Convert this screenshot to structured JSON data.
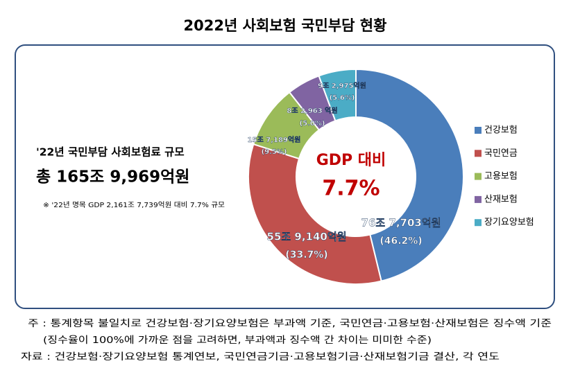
{
  "chart_data": {
    "type": "pie",
    "title": "2022년 사회보험 국민부담 현황",
    "categories": [
      "건강보험",
      "국민연금",
      "고용보험",
      "산재보험",
      "장기요양보험"
    ],
    "values": [
      46.2,
      33.7,
      9.5,
      5.0,
      5.6
    ],
    "value_labels": [
      "(46.2%)",
      "(33.7%)",
      "(9.5%)",
      "(5.0%)",
      "(5.6%)"
    ],
    "amount_labels": [
      "76조 7,703억원",
      "55조 9,140억원",
      "15조 7,189억원",
      "8조 2,963 억원",
      "9조 2,975억원"
    ],
    "colors": [
      "#4a7ebb",
      "#c0504d",
      "#9bbb59",
      "#8064a2",
      "#4bacc6"
    ],
    "legend": "right",
    "center_label": "GDP 대비",
    "center_value": "7.7%",
    "summary_label": "'22년 국민부담 사회보험료 규모",
    "summary_total": "총 165조 9,969억원",
    "summary_note": "※ '22년 명목 GDP 2,161조 7,739억원 대비 7.7% 규모",
    "notes": [
      "주 :  통계항목 불일치로 건강보험·장기요양보험은 부과액 기준, 국민연금·고용보험·산재보험은 징수액 기준",
      "(징수율이 100%에 가까운 점을 고려하면, 부과액과 징수액 간 차이는 미미한 수준)",
      "자료 : 건강보험·장기요양보험 통계연보, 국민연금기금·고용보험기금·산재보험기금 결산, 각 연도"
    ]
  }
}
